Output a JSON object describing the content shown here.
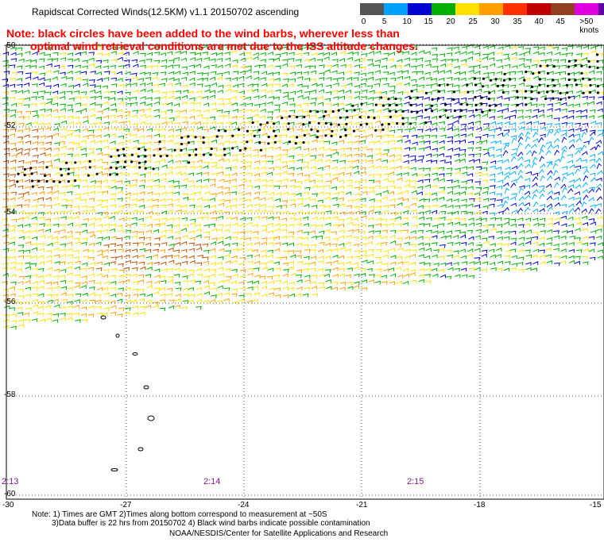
{
  "header": {
    "title": "Rapidscat Corrected Winds(12.5KM) v1.1 20150702 ascending",
    "note_line1": "Note: black circles have been added to the wind barbs, wherever less than",
    "note_line2": "optimal wind retrieval conditions are met due to the ISS altitude changes."
  },
  "legend": {
    "labels": [
      "0",
      "5",
      "10",
      "15",
      "20",
      "25",
      "30",
      "35",
      "40",
      "45",
      ">50 knots"
    ],
    "colors": [
      "#555555",
      "#00a0ff",
      "#0000d0",
      "#00b000",
      "#ffe000",
      "#ffa000",
      "#ff3000",
      "#c00000",
      "#904020",
      "#e000e0",
      "#6000a0"
    ]
  },
  "map": {
    "lat_labels": [
      "-50",
      "-52",
      "-54",
      "-56",
      "-58",
      "-60"
    ],
    "lon_labels": [
      "-30",
      "-27",
      "-24",
      "-21",
      "-18",
      "-15"
    ],
    "times": [
      "2:13",
      "2:14",
      "2:15"
    ],
    "wind_colors": {
      "calm": "#00b0ff",
      "light": "#0000d0",
      "moderate": "#00b000",
      "fresh": "#ffe000",
      "strong": "#ffa000",
      "gale": "#c05000"
    }
  },
  "footer": {
    "line1": "Note: 1) Times are GMT 2)Times along bottom correspond to measurement at ~50S",
    "line2": "3)Data buffer is 22 hrs from 20150702 4) Black wind barbs indicate possible contamination",
    "line3": "NOAA/NESDIS/Center for Satellite Applications and Research"
  }
}
